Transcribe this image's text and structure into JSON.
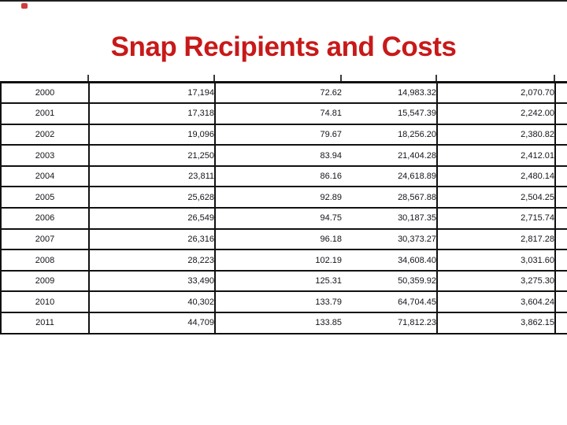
{
  "title": "Snap Recipients and Costs",
  "colors": {
    "title_red": "#c81919",
    "grid_border": "#111111",
    "table_text": "#14141c",
    "top_edge_line": "#1f1f1f"
  },
  "table": {
    "rows": [
      [
        "2000",
        "17,194",
        "72.62",
        "14,983.32",
        "2,070.70"
      ],
      [
        "2001",
        "17,318",
        "74.81",
        "15,547.39",
        "2,242.00"
      ],
      [
        "2002",
        "19,096",
        "79.67",
        "18,256.20",
        "2,380.82"
      ],
      [
        "2003",
        "21,250",
        "83.94",
        "21,404.28",
        "2,412.01"
      ],
      [
        "2004",
        "23,811",
        "86.16",
        "24,618.89",
        "2,480.14"
      ],
      [
        "2005",
        "25,628",
        "92.89",
        "28,567.88",
        "2,504.25"
      ],
      [
        "2006",
        "26,549",
        "94.75",
        "30,187.35",
        "2,715.74"
      ],
      [
        "2007",
        "26,316",
        "96.18",
        "30,373.27",
        "2,817.28"
      ],
      [
        "2008",
        "28,223",
        "102.19",
        "34,608.40",
        "3,031.60"
      ],
      [
        "2009",
        "33,490",
        "125.31",
        "50,359.92",
        "3,275.30"
      ],
      [
        "2010",
        "40,302",
        "133.79",
        "64,704.45",
        "3,604.24"
      ],
      [
        "2011",
        "44,709",
        "133.85",
        "71,812.23",
        "3,862.15"
      ]
    ]
  }
}
